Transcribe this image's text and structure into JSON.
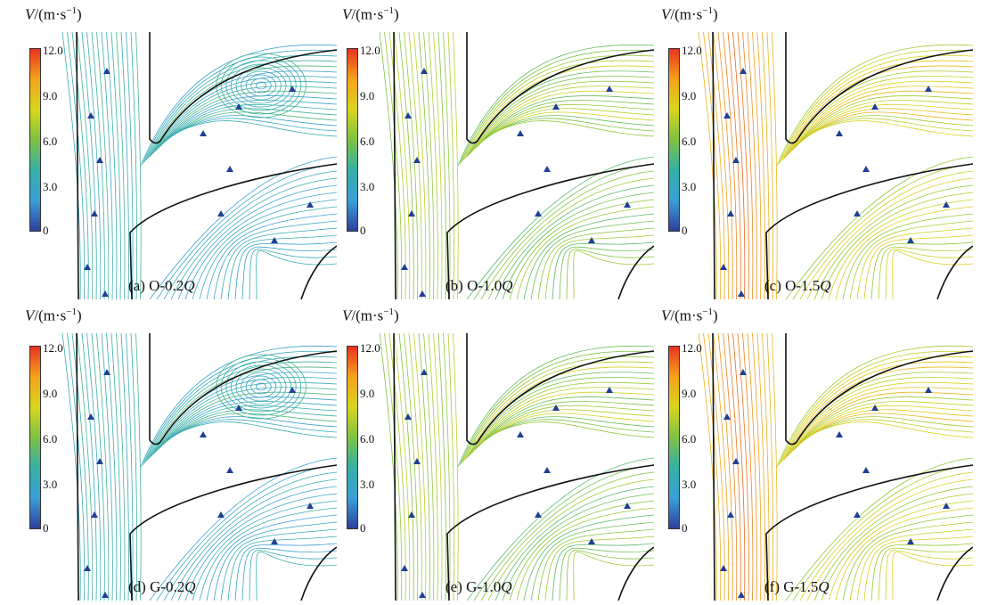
{
  "unit_label": {
    "var": "V",
    "rest": "/(m·s",
    "exp": "−1",
    "close": ")"
  },
  "colorbar": {
    "ticks": [
      "12.0",
      "9.0",
      "6.0",
      "3.0",
      "0"
    ],
    "colors": [
      "#e8331e",
      "#f4a31b",
      "#d9d51e",
      "#7dc242",
      "#35b0a6",
      "#3b9fd8",
      "#2d3f9b"
    ]
  },
  "panels": [
    {
      "id": "a",
      "prefix": "(a) O-0.2",
      "q": "Q",
      "flow": 0.2
    },
    {
      "id": "b",
      "prefix": "(b) O-1.0",
      "q": "Q",
      "flow": 1.0
    },
    {
      "id": "c",
      "prefix": "(c) O-1.5",
      "q": "Q",
      "flow": 1.5
    },
    {
      "id": "d",
      "prefix": "(d) G-0.2",
      "q": "Q",
      "flow": 0.2
    },
    {
      "id": "e",
      "prefix": "(e) G-1.0",
      "q": "Q",
      "flow": 1.0
    },
    {
      "id": "f",
      "prefix": "(f) G-1.5",
      "q": "Q",
      "flow": 1.5
    }
  ]
}
